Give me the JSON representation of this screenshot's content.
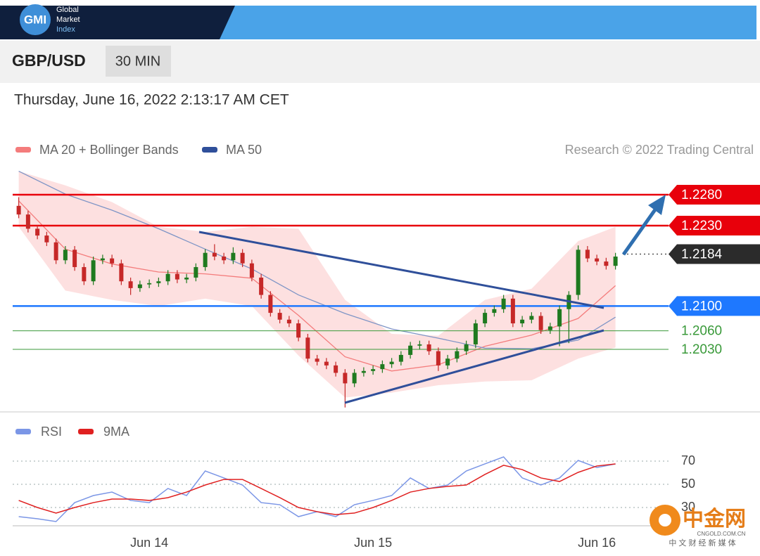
{
  "header": {
    "logo": "GMI",
    "brand": [
      "Global",
      "Market",
      "Index"
    ],
    "symbol": "GBP/USD",
    "interval": "30 MIN",
    "datetime": "Thursday, June 16, 2022 2:13:17 AM CET"
  },
  "watermark": {
    "name": "中金网",
    "url": "CNGOLD.COM.CN",
    "tagline": "中 文 财 经 新 媒 体"
  },
  "chart_data": [
    {
      "type": "candlestick",
      "credit": "Research © 2022 Trading Central",
      "categories": [
        null,
        null,
        null,
        null,
        null,
        null,
        null,
        null,
        null,
        null,
        null,
        null,
        null,
        null,
        "Jun 14",
        null,
        null,
        null,
        null,
        null,
        null,
        null,
        null,
        null,
        null,
        null,
        null,
        null,
        null,
        null,
        null,
        null,
        null,
        null,
        null,
        null,
        null,
        null,
        "Jun 15",
        null,
        null,
        null,
        null,
        null,
        null,
        null,
        null,
        null,
        null,
        null,
        null,
        null,
        null,
        null,
        null,
        null,
        null,
        null,
        null,
        null,
        null,
        null,
        "Jun 16",
        null,
        null
      ],
      "ylim": [
        1.193,
        1.232
      ],
      "ohlc": {
        "up_color": "#1f7a1f",
        "down_color": "#c62828",
        "open": [
          1.2262,
          1.2248,
          1.2225,
          1.2214,
          1.2203,
          1.2174,
          1.2191,
          1.2163,
          1.214,
          1.2174,
          1.2177,
          1.2169,
          1.214,
          1.2129,
          1.2135,
          1.2137,
          1.214,
          1.2152,
          1.2143,
          1.2146,
          1.2163,
          1.2186,
          1.218,
          1.2174,
          1.2186,
          1.2169,
          1.2146,
          1.2118,
          1.2089,
          1.2078,
          1.2072,
          1.2049,
          1.2015,
          1.201,
          1.2004,
          1.1992,
          1.1975,
          1.1992,
          1.1995,
          1.1998,
          1.2006,
          1.201,
          1.2021,
          1.2036,
          1.2038,
          1.2027,
          1.2004,
          1.2015,
          1.2027,
          1.2038,
          1.2072,
          1.2089,
          1.2095,
          1.2112,
          1.2072,
          1.2078,
          1.2084,
          1.2061,
          1.2067,
          1.2095,
          1.2118,
          1.2191,
          1.2177,
          1.2172,
          1.2165
        ],
        "high": [
          1.2276,
          1.2254,
          1.2231,
          1.222,
          1.2209,
          1.2197,
          1.2197,
          1.2169,
          1.218,
          1.2183,
          1.2183,
          1.2175,
          1.2146,
          1.2141,
          1.2143,
          1.2146,
          1.2158,
          1.2158,
          1.2152,
          1.2169,
          1.2192,
          1.22,
          1.2186,
          1.2195,
          1.2192,
          1.2175,
          1.2152,
          1.2124,
          1.2095,
          1.2084,
          1.2078,
          1.2055,
          1.2021,
          1.2016,
          1.201,
          1.1998,
          1.1998,
          1.2001,
          1.2004,
          1.2012,
          1.2016,
          1.2027,
          1.2042,
          1.2044,
          1.2044,
          1.2033,
          1.2021,
          1.2033,
          1.2044,
          1.2078,
          1.2095,
          1.2101,
          1.2118,
          1.2118,
          1.2084,
          1.209,
          1.209,
          1.2073,
          1.2101,
          1.2124,
          1.2198,
          1.2197,
          1.2183,
          1.2178,
          1.2186
        ],
        "low": [
          1.2242,
          1.2219,
          1.2208,
          1.2197,
          1.2168,
          1.2168,
          1.2157,
          1.2134,
          1.2134,
          1.2168,
          1.2163,
          1.2134,
          1.2118,
          1.2123,
          1.2129,
          1.2131,
          1.2134,
          1.2137,
          1.2137,
          1.214,
          1.2157,
          1.2174,
          1.2168,
          1.2168,
          1.2163,
          1.214,
          1.2112,
          1.2083,
          1.2072,
          1.2066,
          1.2043,
          1.2009,
          1.2004,
          1.1998,
          1.1986,
          1.1936,
          1.1969,
          1.1986,
          1.1989,
          1.1992,
          1.2,
          1.2004,
          1.2015,
          1.203,
          1.2021,
          1.1995,
          1.1998,
          1.2009,
          1.2021,
          1.2032,
          1.2066,
          1.2083,
          1.2089,
          1.2066,
          1.2066,
          1.2072,
          1.2055,
          1.2055,
          1.2035,
          1.204,
          1.211,
          1.2171,
          1.2166,
          1.2159,
          1.2159
        ],
        "close": [
          1.2248,
          1.2225,
          1.2214,
          1.2203,
          1.2174,
          1.2191,
          1.2163,
          1.214,
          1.2174,
          1.2177,
          1.2169,
          1.214,
          1.2129,
          1.2135,
          1.2137,
          1.214,
          1.2152,
          1.2143,
          1.2146,
          1.2163,
          1.2186,
          1.218,
          1.2174,
          1.2186,
          1.2169,
          1.2146,
          1.2118,
          1.2089,
          1.2078,
          1.2072,
          1.2049,
          1.2015,
          1.201,
          1.2004,
          1.1992,
          1.1975,
          1.1992,
          1.1995,
          1.1998,
          1.2006,
          1.201,
          1.2021,
          1.2036,
          1.2038,
          1.2027,
          1.2004,
          1.2015,
          1.2027,
          1.2038,
          1.2072,
          1.2089,
          1.2095,
          1.2112,
          1.2072,
          1.2078,
          1.2084,
          1.2061,
          1.2067,
          1.2095,
          1.2118,
          1.2191,
          1.2177,
          1.2172,
          1.2165,
          1.218
        ]
      },
      "series": [
        {
          "name": "MA 20 + Bollinger Bands",
          "color": "#f47c7c",
          "band_color": "#fde0e0",
          "x": [
            0,
            5,
            10,
            15,
            20,
            25,
            30,
            35,
            40,
            45,
            50,
            55,
            60,
            64
          ],
          "values": [
            1.227,
            1.2192,
            1.2168,
            1.2155,
            1.2152,
            1.2145,
            1.2085,
            1.2018,
            1.1995,
            1.2005,
            1.2035,
            1.2053,
            1.208,
            1.2133
          ],
          "upper": [
            1.2318,
            1.2295,
            1.2268,
            1.2228,
            1.222,
            1.2228,
            1.2225,
            1.211,
            1.2055,
            1.2052,
            1.211,
            1.2128,
            1.2205,
            1.2228
          ],
          "lower": [
            1.2228,
            1.2125,
            1.211,
            1.21,
            1.2112,
            1.21,
            1.202,
            1.1952,
            1.196,
            1.1972,
            1.1978,
            1.198,
            1.2015,
            1.2033
          ]
        },
        {
          "name": "MA 50",
          "color": "#2f4f9a",
          "line_color": "#7f95c6",
          "x": [
            0,
            5,
            10,
            15,
            20,
            25,
            30,
            35,
            40,
            45,
            50,
            55,
            60,
            64
          ],
          "values": [
            1.2318,
            1.2281,
            1.2255,
            1.2225,
            1.2192,
            1.216,
            1.2118,
            1.2088,
            1.2063,
            1.2048,
            1.2032,
            1.2031,
            1.2045,
            1.2082
          ]
        }
      ],
      "levels": [
        {
          "value": 1.228,
          "label": "1.2280",
          "color": "#e8000b",
          "style": "box",
          "line": "solid"
        },
        {
          "value": 1.223,
          "label": "1.2230",
          "color": "#e8000b",
          "style": "box",
          "line": "solid"
        },
        {
          "value": 1.2184,
          "label": "1.2184",
          "color": "#2b2b2b",
          "style": "box",
          "line": "dotted"
        },
        {
          "value": 1.21,
          "label": "1.2100",
          "color": "#1e78ff",
          "style": "box",
          "line": "solid"
        },
        {
          "value": 1.206,
          "label": "1.2060",
          "color": "#3a9a3a",
          "style": "text",
          "line": "solid"
        },
        {
          "value": 1.203,
          "label": "1.2030",
          "color": "#3a9a3a",
          "style": "text",
          "line": "solid"
        }
      ]
    },
    {
      "type": "line",
      "xlim": [
        -0.5,
        64.5
      ],
      "ylim": [
        15,
        80
      ],
      "yticks": [
        30,
        50,
        70
      ],
      "series": [
        {
          "name": "RSI",
          "color": "#7b96e6",
          "x": [
            0,
            2,
            4,
            6,
            8,
            10,
            12,
            14,
            16,
            18,
            20,
            22,
            24,
            26,
            28,
            30,
            32,
            34,
            36,
            38,
            40,
            42,
            44,
            46,
            48,
            50,
            52,
            54,
            56,
            58,
            60,
            62,
            64
          ],
          "values": [
            22.1,
            20.3,
            17.9,
            34.2,
            40.3,
            43.3,
            36.1,
            34.2,
            46.4,
            40.3,
            61.5,
            55.5,
            49.4,
            34.2,
            32.4,
            22.1,
            26.4,
            22.1,
            32.4,
            36.1,
            40.3,
            55.5,
            46.4,
            49.4,
            61.5,
            67.6,
            73.6,
            55.5,
            49.4,
            55.5,
            70.6,
            64.5,
            67.6
          ]
        },
        {
          "name": "9MA",
          "color": "#e02020",
          "x": [
            0,
            2,
            4,
            6,
            8,
            10,
            12,
            14,
            16,
            18,
            20,
            22,
            24,
            26,
            28,
            30,
            32,
            34,
            36,
            38,
            40,
            42,
            44,
            46,
            48,
            50,
            52,
            54,
            56,
            58,
            60,
            62,
            64
          ],
          "values": [
            36.1,
            30,
            25.2,
            30,
            34.2,
            37.3,
            37.3,
            36.1,
            38.5,
            43.3,
            49.4,
            54.2,
            54.2,
            46.4,
            38.5,
            30,
            26.4,
            23.9,
            25.2,
            30,
            36.1,
            43.3,
            46.4,
            48.2,
            49.4,
            58.5,
            66.4,
            62.7,
            55.5,
            52.4,
            60.3,
            65.8,
            67.6
          ]
        }
      ]
    }
  ]
}
